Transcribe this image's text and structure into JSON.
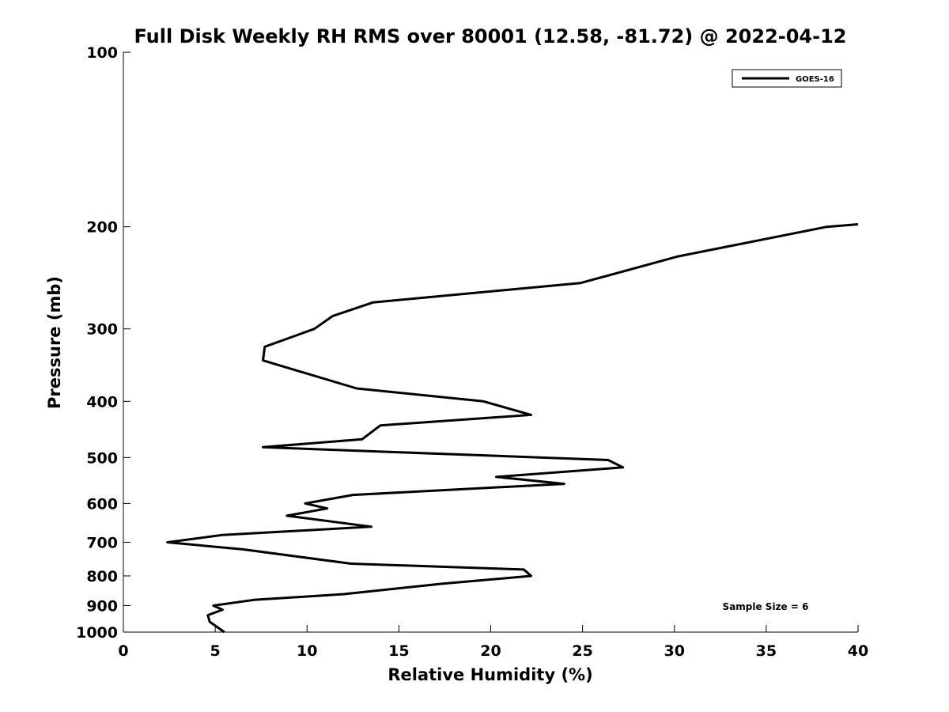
{
  "chart_data": {
    "type": "line",
    "title": "Full Disk Weekly RH RMS over 80001 (12.58, -81.72) @ 2022-04-12",
    "xlabel": "Relative Humidity (%)",
    "ylabel": "Pressure (mb)",
    "xlim": [
      0,
      40
    ],
    "ylim": [
      100,
      1000
    ],
    "y_scale": "log",
    "y_reversed": true,
    "x_ticks": [
      "0",
      "5",
      "10",
      "15",
      "20",
      "25",
      "30",
      "35",
      "40"
    ],
    "y_ticks": [
      "100",
      "200",
      "300",
      "400",
      "500",
      "600",
      "700",
      "800",
      "900",
      "1000"
    ],
    "grid": false,
    "legend_position": "top-right",
    "annotation": "Sample Size = 6",
    "series": [
      {
        "name": "GOES-16",
        "color": "#000000",
        "x": [
          40.0,
          38.3,
          30.2,
          24.9,
          13.6,
          11.4,
          10.4,
          7.7,
          7.6,
          12.7,
          19.6,
          22.2,
          14.0,
          13.0,
          7.6,
          26.4,
          27.2,
          20.3,
          24.0,
          12.5,
          9.9,
          11.1,
          8.9,
          13.5,
          5.4,
          2.4,
          6.5,
          12.4,
          21.8,
          22.2,
          17.4,
          12.0,
          7.1,
          4.9,
          5.4,
          4.6,
          4.7,
          5.5
        ],
        "y": [
          198,
          200,
          225,
          250,
          270,
          285,
          300,
          322,
          340,
          380,
          400,
          422,
          440,
          465,
          480,
          505,
          520,
          540,
          555,
          580,
          600,
          612,
          630,
          658,
          680,
          700,
          720,
          762,
          780,
          800,
          825,
          860,
          880,
          900,
          915,
          935,
          960,
          1000
        ]
      }
    ]
  }
}
